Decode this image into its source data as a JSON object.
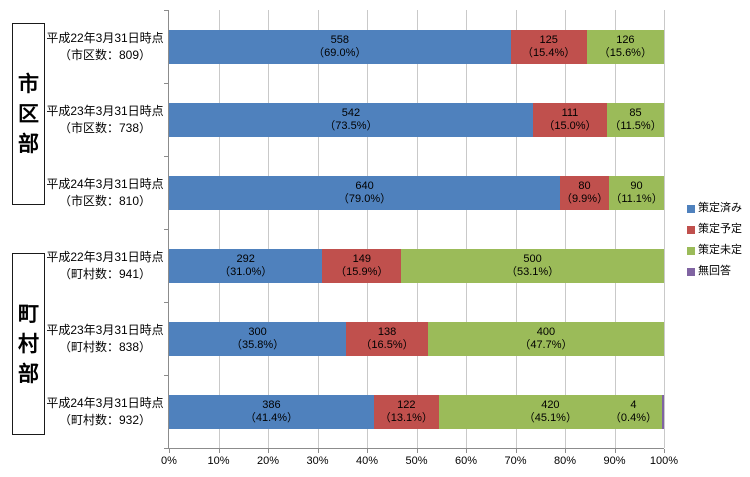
{
  "chart_data": {
    "type": "bar",
    "orientation": "horizontal",
    "stacked": true,
    "title": "",
    "xlabel": "",
    "ylabel": "",
    "xlim": [
      0,
      100
    ],
    "grid": "vertical-10pct",
    "legend_position": "right",
    "x_ticks": [
      "0%",
      "10%",
      "20%",
      "30%",
      "40%",
      "50%",
      "60%",
      "70%",
      "80%",
      "90%",
      "100%"
    ],
    "series": [
      {
        "key": "sakutei-zumi",
        "name": "策定済み",
        "color": "#4F81BD"
      },
      {
        "key": "sakutei-yotei",
        "name": "策定予定",
        "color": "#C0504D"
      },
      {
        "key": "sakutei-mitei",
        "name": "策定未定",
        "color": "#9BBB59"
      },
      {
        "key": "mukaito",
        "name": "無回答",
        "color": "#8064A2"
      }
    ],
    "groups": [
      {
        "label": "市区部"
      },
      {
        "label": "町村部"
      }
    ],
    "rows": [
      {
        "group_index": 0,
        "label_line1": "平成22年3月31日時点",
        "label_line2": "（市区数：809）",
        "segments": [
          {
            "value": "558",
            "pct": 69.0,
            "pct_text": "（69.0%）"
          },
          {
            "value": "125",
            "pct": 15.4,
            "pct_text": "（15.4%）"
          },
          {
            "value": "126",
            "pct": 15.6,
            "pct_text": "（15.6%）"
          },
          null
        ]
      },
      {
        "group_index": 0,
        "label_line1": "平成23年3月31日時点",
        "label_line2": "（市区数：738）",
        "segments": [
          {
            "value": "542",
            "pct": 73.5,
            "pct_text": "（73.5%）"
          },
          {
            "value": "111",
            "pct": 15.0,
            "pct_text": "（15.0%）"
          },
          {
            "value": "85",
            "pct": 11.5,
            "pct_text": "（11.5%）"
          },
          null
        ]
      },
      {
        "group_index": 0,
        "label_line1": "平成24年3月31日時点",
        "label_line2": "（市区数：810）",
        "segments": [
          {
            "value": "640",
            "pct": 79.0,
            "pct_text": "（79.0%）"
          },
          {
            "value": "80",
            "pct": 9.9,
            "pct_text": "（9.9%）"
          },
          {
            "value": "90",
            "pct": 11.1,
            "pct_text": "（11.1%）"
          },
          null
        ]
      },
      {
        "group_index": 1,
        "label_line1": "平成22年3月31日時点",
        "label_line2": "（町村数：941）",
        "segments": [
          {
            "value": "292",
            "pct": 31.0,
            "pct_text": "（31.0%）"
          },
          {
            "value": "149",
            "pct": 15.9,
            "pct_text": "（15.9%）"
          },
          {
            "value": "500",
            "pct": 53.1,
            "pct_text": "（53.1%）"
          },
          null
        ]
      },
      {
        "group_index": 1,
        "label_line1": "平成23年3月31日時点",
        "label_line2": "（町村数：838）",
        "segments": [
          {
            "value": "300",
            "pct": 35.8,
            "pct_text": "（35.8%）"
          },
          {
            "value": "138",
            "pct": 16.5,
            "pct_text": "（16.5%）"
          },
          {
            "value": "400",
            "pct": 47.7,
            "pct_text": "（47.7%）"
          },
          null
        ]
      },
      {
        "group_index": 1,
        "label_line1": "平成24年3月31日時点",
        "label_line2": "（町村数：932）",
        "segments": [
          {
            "value": "386",
            "pct": 41.4,
            "pct_text": "（41.4%）"
          },
          {
            "value": "122",
            "pct": 13.1,
            "pct_text": "（13.1%）"
          },
          {
            "value": "420",
            "pct": 45.1,
            "pct_text": "（45.1%）"
          },
          {
            "value": "4",
            "pct": 0.4,
            "pct_text": "（0.4%）"
          }
        ]
      }
    ]
  }
}
